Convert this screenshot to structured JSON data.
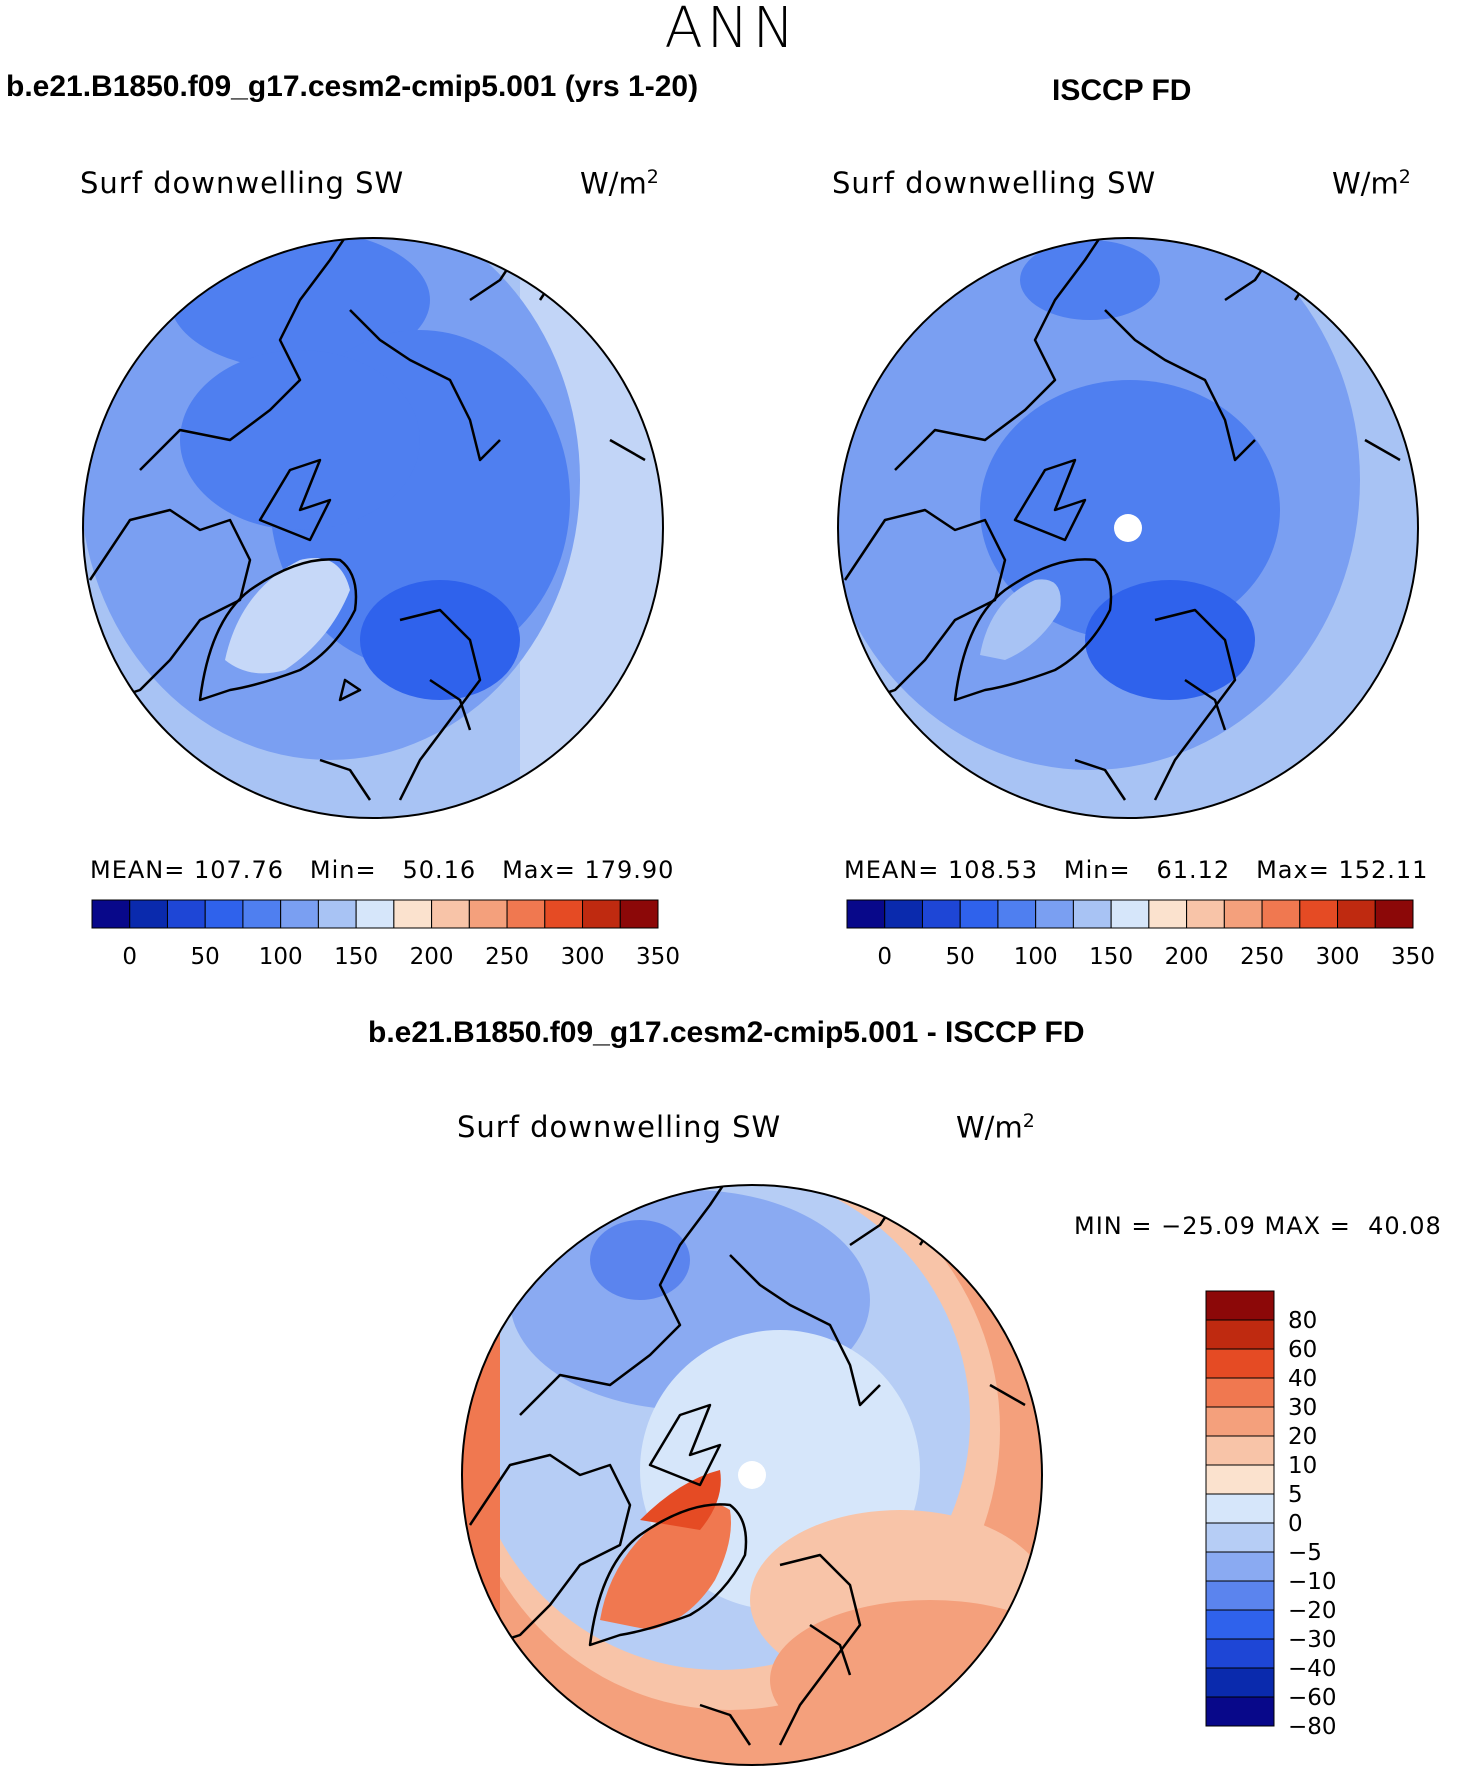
{
  "header": {
    "season": "ANN"
  },
  "panels": [
    {
      "title": "b.e21.B1850.f09_g17.cesm2-cmip5.001 (yrs 1-20)",
      "subtitle": "Surf downwelling SW",
      "units": "W/m",
      "units_exp": "2",
      "mean_label": "MEAN=",
      "mean": "107.76",
      "min_label": "Min=",
      "min": "50.16",
      "max_label": "Max=",
      "max": "179.90"
    },
    {
      "title": "ISCCP FD",
      "subtitle": "Surf downwelling SW",
      "units": "W/m",
      "units_exp": "2",
      "mean_label": "MEAN=",
      "mean": "108.53",
      "min_label": "Min=",
      "min": "61.12",
      "max_label": "Max=",
      "max": "152.11"
    }
  ],
  "diff": {
    "title": "b.e21.B1850.f09_g17.cesm2-cmip5.001 - ISCCP FD",
    "subtitle": "Surf downwelling SW",
    "units": "W/m",
    "units_exp": "2",
    "minmax": "MIN = −25.09 MAX =  40.08"
  },
  "chart_data": [
    {
      "type": "map",
      "projection": "north polar stereographic",
      "field": "Surf downwelling SW",
      "units": "W/m2",
      "mean": 107.76,
      "min": 50.16,
      "max": 179.9,
      "colorbar": {
        "ticks": [
          "0",
          "50",
          "100",
          "150",
          "200",
          "250",
          "300",
          "350"
        ],
        "levels": [
          0,
          25,
          50,
          75,
          100,
          125,
          150,
          175,
          200,
          225,
          250,
          275,
          300,
          325,
          350
        ]
      }
    },
    {
      "type": "map",
      "projection": "north polar stereographic",
      "field": "Surf downwelling SW",
      "units": "W/m2",
      "mean": 108.53,
      "min": 61.12,
      "max": 152.11,
      "colorbar": {
        "ticks": [
          "0",
          "50",
          "100",
          "150",
          "200",
          "250",
          "300",
          "350"
        ],
        "levels": [
          0,
          25,
          50,
          75,
          100,
          125,
          150,
          175,
          200,
          225,
          250,
          275,
          300,
          325,
          350
        ]
      }
    },
    {
      "type": "map",
      "projection": "north polar stereographic",
      "field": "Surf downwelling SW (model - obs)",
      "units": "W/m2",
      "min": -25.09,
      "max": 40.08,
      "colorbar": {
        "ticks": [
          "80",
          "60",
          "40",
          "30",
          "20",
          "10",
          "5",
          "0",
          "−5",
          "−10",
          "−20",
          "−30",
          "−40",
          "−60",
          "−80"
        ]
      }
    }
  ],
  "palettes": {
    "abs": [
      "#08088a",
      "#0a2aad",
      "#1e46d6",
      "#2f62ec",
      "#4f7ff0",
      "#7a9ff2",
      "#a8c3f4",
      "#d6e6fa",
      "#fbe2ce",
      "#f8c4a8",
      "#f4a07c",
      "#f07850",
      "#e54b24",
      "#bf2a10",
      "#8c0808"
    ],
    "diff": [
      "#08088a",
      "#0a2aad",
      "#1e46d6",
      "#2f62ec",
      "#5b84ee",
      "#8aaaf2",
      "#b6cdf5",
      "#d6e6fa",
      "#fbe2ce",
      "#f8c4a8",
      "#f4a07c",
      "#f07850",
      "#e54b24",
      "#bf2a10",
      "#8c0808"
    ]
  }
}
